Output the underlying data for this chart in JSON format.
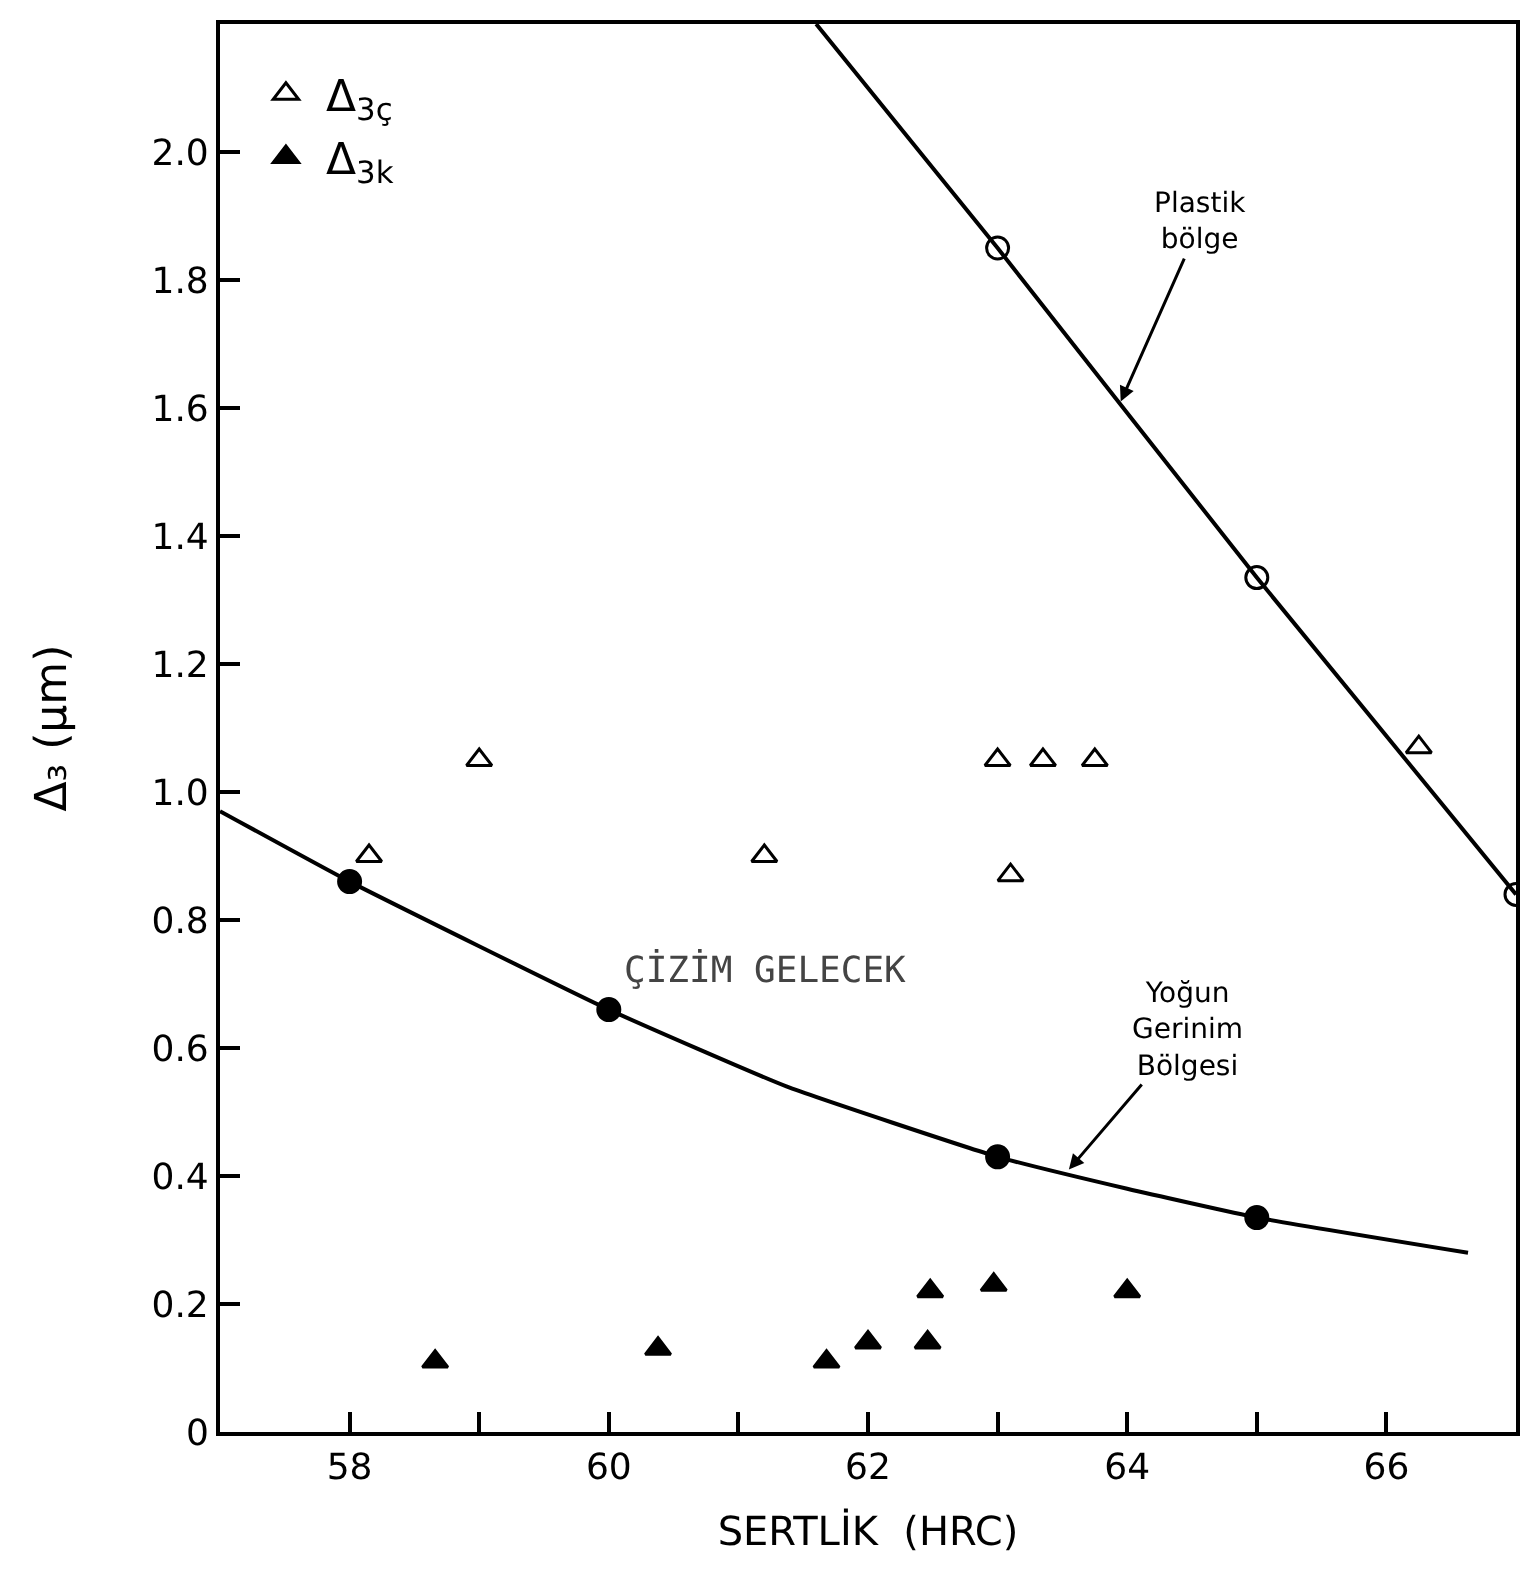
{
  "chart_data": {
    "type": "scatter",
    "xlabel": "SERTLİK  (HRC)",
    "ylabel": "Δ₃ (µm)",
    "xlim": [
      57,
      67
    ],
    "ylim": [
      0,
      2.2
    ],
    "xticks": [
      {
        "value": 58,
        "label": "58"
      },
      {
        "value": 59,
        "label": null
      },
      {
        "value": 60,
        "label": "60"
      },
      {
        "value": 61,
        "label": null
      },
      {
        "value": 62,
        "label": "62"
      },
      {
        "value": 63,
        "label": null
      },
      {
        "value": 64,
        "label": "64"
      },
      {
        "value": 65,
        "label": null
      },
      {
        "value": 66,
        "label": "66"
      }
    ],
    "yticks": [
      {
        "value": 0,
        "label": "0"
      },
      {
        "value": 0.2,
        "label": "0.2"
      },
      {
        "value": 0.4,
        "label": "0.4"
      },
      {
        "value": 0.6,
        "label": "0.6"
      },
      {
        "value": 0.8,
        "label": "0.8"
      },
      {
        "value": 1.0,
        "label": "1.0"
      },
      {
        "value": 1.2,
        "label": "1.2"
      },
      {
        "value": 1.4,
        "label": "1.4"
      },
      {
        "value": 1.6,
        "label": "1.6"
      },
      {
        "value": 1.8,
        "label": "1.8"
      },
      {
        "value": 2.0,
        "label": "2.0"
      }
    ],
    "legend": "top left",
    "series": [
      {
        "name": "Δ$_{3ç}$",
        "marker": "triangle-open",
        "color": "#000000",
        "x": [
          58.15,
          59,
          61.2,
          63,
          63.35,
          63.75,
          63.1,
          66.25
        ],
        "values": [
          0.9,
          1.05,
          0.9,
          1.05,
          1.05,
          1.05,
          0.87,
          1.07
        ]
      },
      {
        "name": "Δ$_{3k}$",
        "marker": "triangle",
        "color": "#000000",
        "x": [
          58.66,
          60.38,
          61.68,
          62.0,
          62.46,
          62.48,
          62.97,
          64.0
        ],
        "values": [
          0.11,
          0.13,
          0.11,
          0.14,
          0.14,
          0.22,
          0.23,
          0.22
        ]
      },
      {
        "type": "line",
        "marker": "none",
        "color": "#000000",
        "x": [
          61.6,
          63,
          65,
          67
        ],
        "values": [
          2.2,
          1.85,
          1.335,
          0.84
        ]
      },
      {
        "marker": "circle-open",
        "color": "#000000",
        "x": [
          63,
          65,
          67
        ],
        "values": [
          1.85,
          1.335,
          0.84
        ]
      },
      {
        "type": "line",
        "marker": "none",
        "color": "#000000",
        "x": [
          57,
          58,
          60,
          61.37,
          63,
          64,
          65,
          66.63
        ],
        "values": [
          0.97,
          0.86,
          0.66,
          0.54,
          0.43,
          0.38,
          0.335,
          0.28
        ]
      },
      {
        "marker": "circle",
        "color": "#000000",
        "x": [
          58,
          60,
          63,
          65
        ],
        "values": [
          0.86,
          0.66,
          0.43,
          0.335
        ]
      }
    ],
    "annotations": [
      {
        "text": "Plastik\nbölge",
        "x": 63.95,
        "y": 1.61
      },
      {
        "text": "Yoğun\nGerinim\nBölgesi",
        "x": 63.55,
        "y": 0.41
      },
      "ÇİZİM GELECEK"
    ]
  }
}
